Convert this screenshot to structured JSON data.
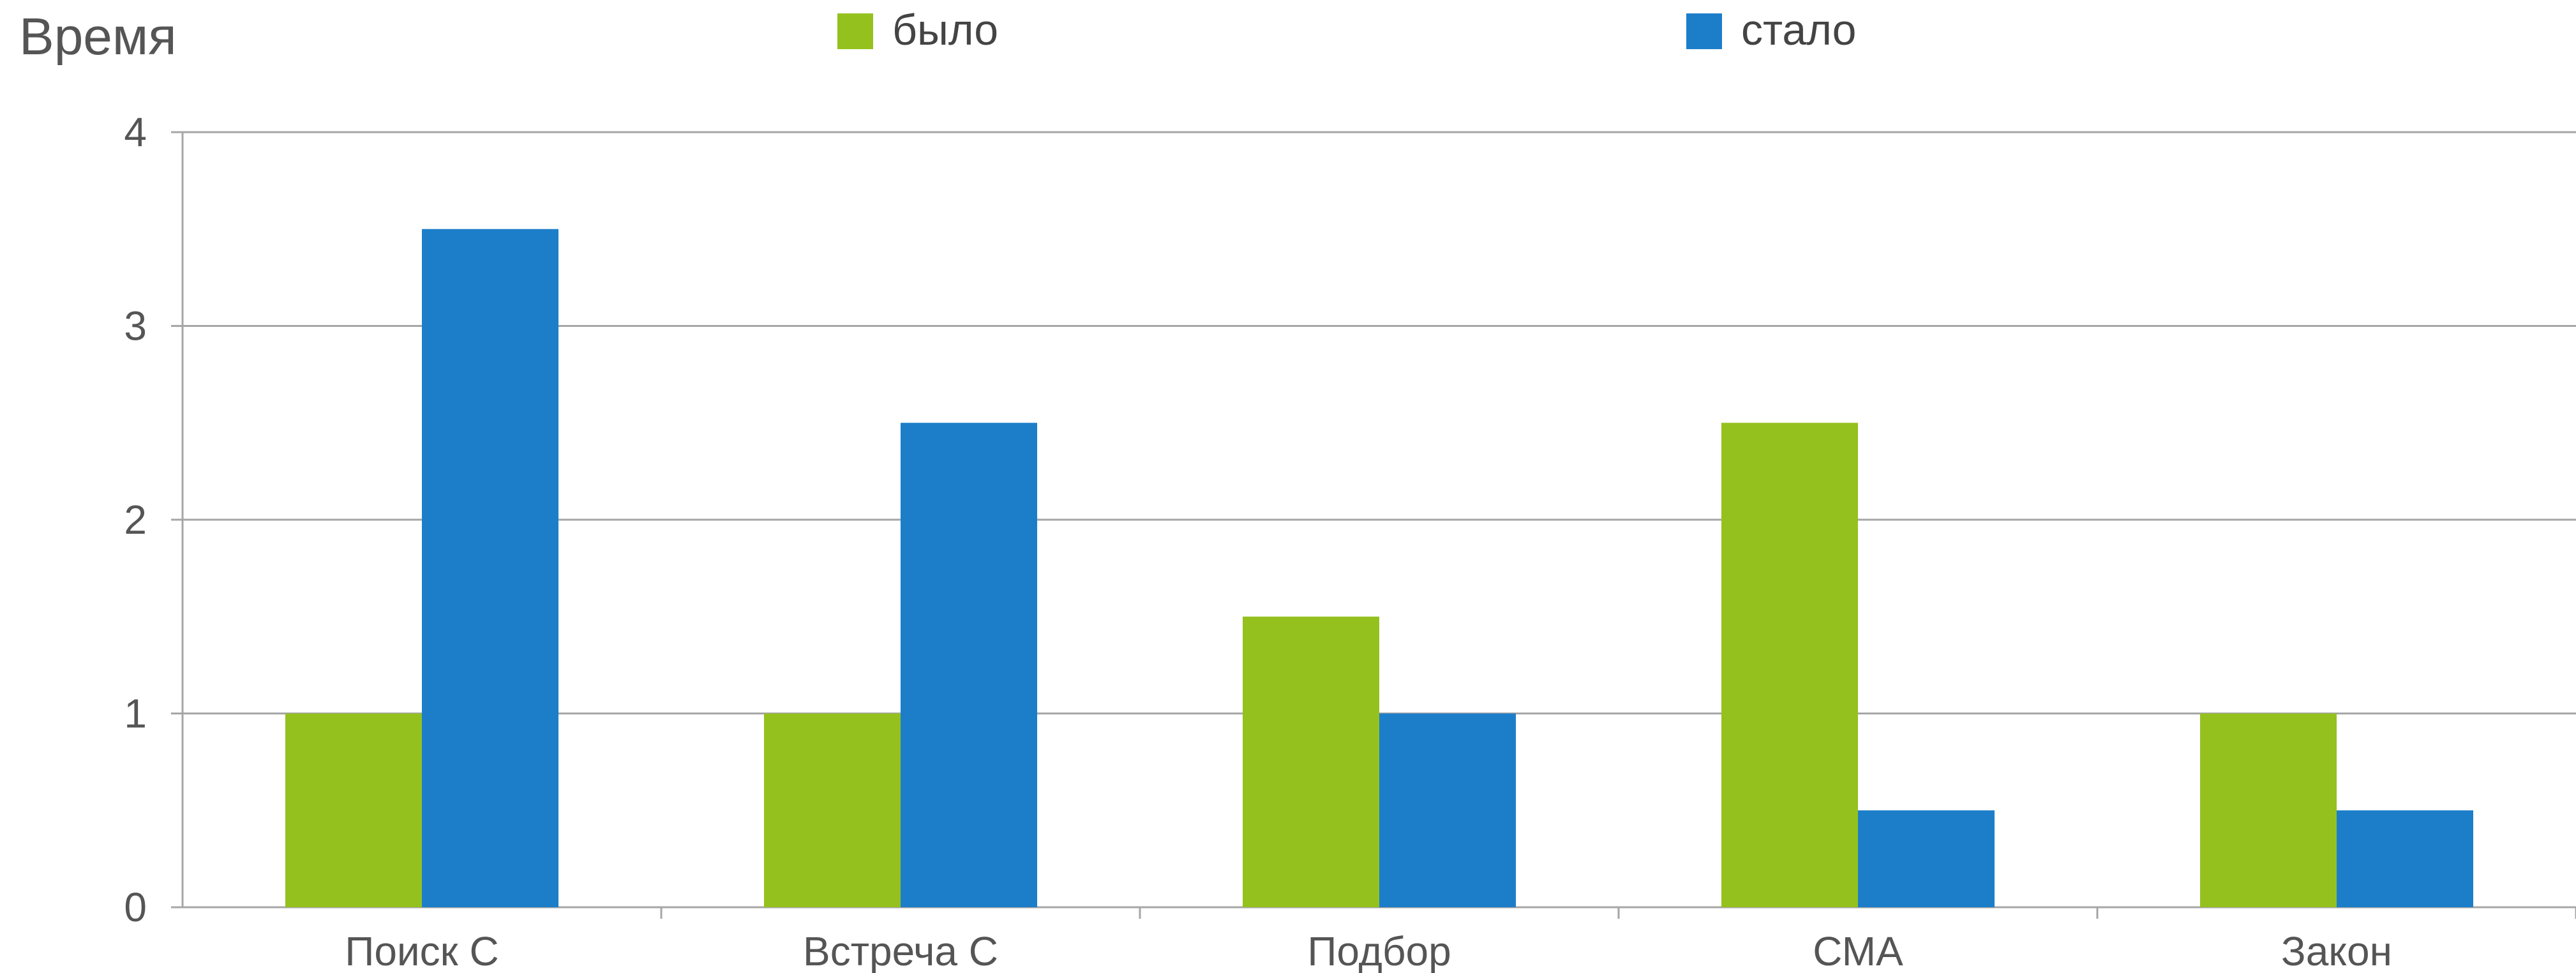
{
  "chart_data": {
    "type": "bar",
    "title": "",
    "ylabel": "Время",
    "xlabel": "",
    "ylim": [
      0,
      4
    ],
    "yticks": [
      0,
      1,
      2,
      3,
      4
    ],
    "grid": true,
    "legend_position": "top",
    "categories": [
      "Поиск С",
      "Встреча С",
      "Подбор",
      "СМА",
      "Закон"
    ],
    "series": [
      {
        "name": "было",
        "color": "#95c11f",
        "values": [
          1,
          1,
          1.5,
          2.5,
          1
        ]
      },
      {
        "name": "стало",
        "color": "#1c7ec9",
        "values": [
          3.5,
          2.5,
          1,
          0.5,
          0.5
        ]
      }
    ]
  }
}
